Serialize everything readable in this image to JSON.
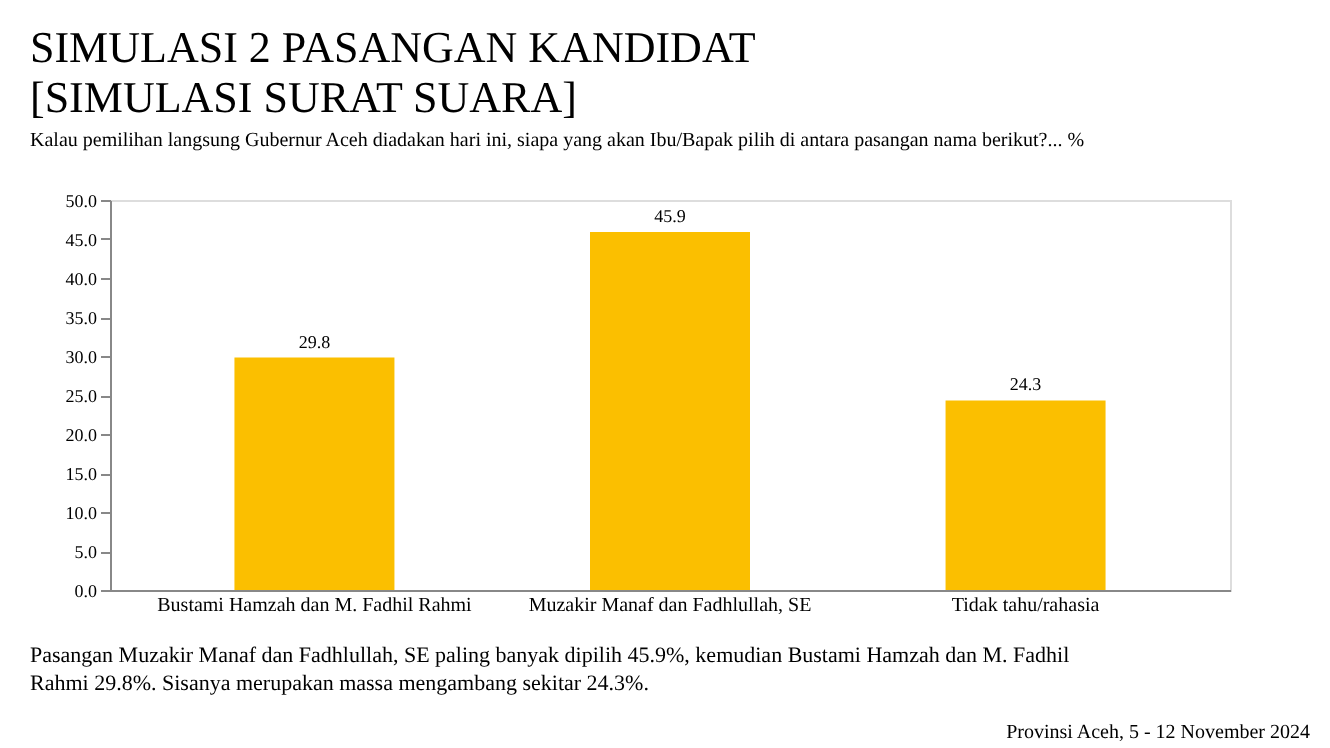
{
  "chart_data": {
    "type": "bar",
    "title": "SIMULASI 2 PASANGAN KANDIDAT\n[SIMULASI SURAT SUARA]",
    "subtitle": "Kalau pemilihan langsung Gubernur Aceh diadakan hari ini, siapa yang akan Ibu/Bapak pilih di antara pasangan nama berikut?... %",
    "categories": [
      "Bustami Hamzah dan M. Fadhil Rahmi",
      "Muzakir Manaf dan Fadhlullah, SE",
      "Tidak tahu/rahasia"
    ],
    "values": [
      29.8,
      45.9,
      24.3
    ],
    "color": "#fbbf00",
    "data_labels": true,
    "ylim": [
      0,
      50
    ],
    "yticks": [
      {
        "value": 0,
        "label": "0.0"
      },
      {
        "value": 5,
        "label": "5.0"
      },
      {
        "value": 10,
        "label": "10.0"
      },
      {
        "value": 15,
        "label": "15.0"
      },
      {
        "value": 20,
        "label": "20.0"
      },
      {
        "value": 25,
        "label": "25.0"
      },
      {
        "value": 30,
        "label": "30.0"
      },
      {
        "value": 35,
        "label": "35.0"
      },
      {
        "value": 40,
        "label": "40.0"
      },
      {
        "value": 45,
        "label": "45.0"
      },
      {
        "value": 50,
        "label": "50.0"
      }
    ],
    "grid": false,
    "annotations": [
      "Pasangan Muzakir Manaf dan Fadhlullah, SE paling banyak dipilih 45.9%, kemudian Bustami Hamzah dan M. Fadhil\nRahmi 29.8%. Sisanya merupakan massa mengambang sekitar 24.3%.",
      "Provinsi Aceh, 5 - 12 November 2024"
    ]
  }
}
